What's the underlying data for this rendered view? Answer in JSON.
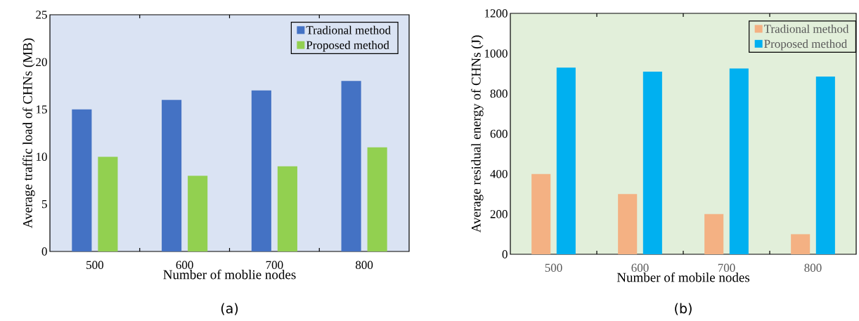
{
  "chart_data": [
    {
      "type": "bar",
      "xlabel": "Number of moblie nodes",
      "ylabel": "Average traffic load of CHNs (MB)",
      "categories": [
        "500",
        "600",
        "700",
        "800"
      ],
      "series": [
        {
          "name": "Tradional method",
          "color": "#4472c4",
          "values": [
            15,
            16,
            17,
            18
          ]
        },
        {
          "name": "Proposed method",
          "color": "#92d050",
          "values": [
            10,
            8,
            9,
            11
          ]
        }
      ],
      "ylim": [
        0,
        25
      ],
      "yticks": [
        0,
        5,
        10,
        15,
        20,
        25
      ],
      "legend": "top right",
      "annotations": [
        "(a)"
      ]
    },
    {
      "type": "bar",
      "xlabel": "Number of mobile nodes",
      "ylabel": "Average residual energy of CHNs (J)",
      "categories": [
        "500",
        "600",
        "700",
        "800"
      ],
      "series": [
        {
          "name": "Tradional method",
          "color": "#f4b183",
          "values": [
            400,
            300,
            200,
            100
          ]
        },
        {
          "name": "Proposed method",
          "color": "#00b0f0",
          "values": [
            930,
            910,
            925,
            885
          ]
        }
      ],
      "ylim": [
        0,
        1200
      ],
      "yticks": [
        0,
        200,
        400,
        600,
        800,
        1000,
        1200
      ],
      "legend": "top right",
      "annotations": [
        "(b)"
      ]
    }
  ]
}
